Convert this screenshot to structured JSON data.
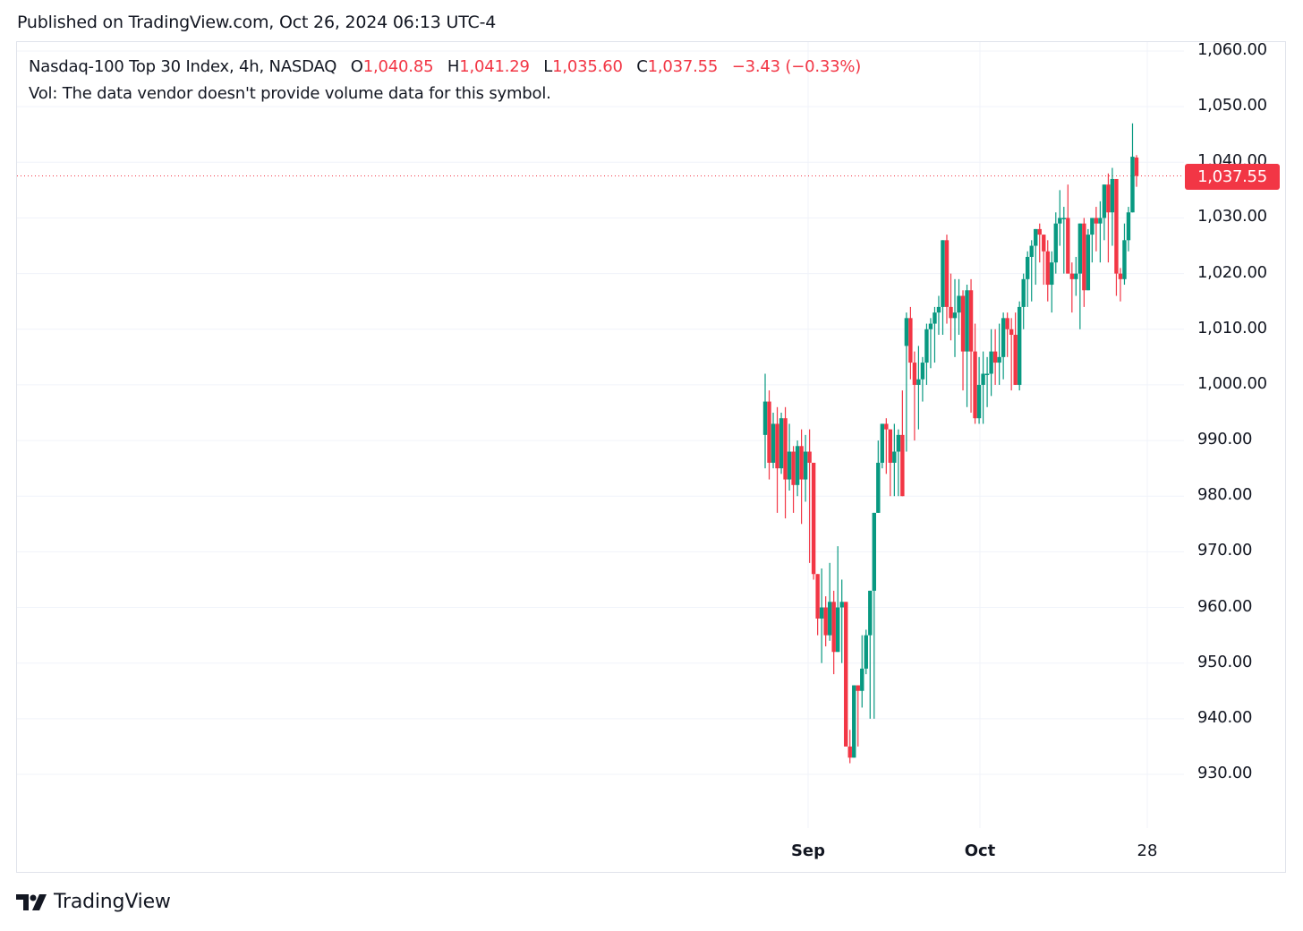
{
  "header": {
    "published": "Published on TradingView.com, Oct 26, 2024 06:13 UTC-4"
  },
  "legend": {
    "symbol": "Nasdaq-100 Top 30 Index, 4h, NASDAQ",
    "open_label": "O",
    "open": "1,040.85",
    "high_label": "H",
    "high": "1,041.29",
    "low_label": "L",
    "low": "1,035.60",
    "close_label": "C",
    "close": "1,037.55",
    "change": "−3.43 (−0.33%)",
    "volume_note": "Vol: The data vendor doesn't provide volume data for this symbol."
  },
  "price_tag": "1,037.55",
  "footer": {
    "brand": "TradingView"
  },
  "colors": {
    "up": "#089981",
    "down": "#f23645",
    "grid": "#f0f3fa",
    "text": "#131722"
  },
  "chart_data": {
    "type": "candlestick",
    "title": "Nasdaq-100 Top 30 Index, 4h, NASDAQ",
    "xlabel": "",
    "ylabel": "",
    "x_ticks": [
      "Sep",
      "Oct",
      "28"
    ],
    "y_ticks": [
      "1,060.00",
      "1,050.00",
      "1,040.00",
      "1,030.00",
      "1,020.00",
      "1,010.00",
      "1,000.00",
      "990.00",
      "980.00",
      "970.00",
      "960.00",
      "950.00",
      "940.00",
      "930.00"
    ],
    "ylim": [
      919,
      1062
    ],
    "grid": true,
    "last_price": 1037.55,
    "candles": [
      [
        991,
        1002,
        985,
        997
      ],
      [
        997,
        999,
        983,
        986
      ],
      [
        986,
        995,
        985,
        993
      ],
      [
        993,
        996,
        977,
        985
      ],
      [
        985,
        995,
        984,
        994
      ],
      [
        994,
        996,
        976,
        983
      ],
      [
        983,
        993,
        981,
        988
      ],
      [
        988,
        989,
        977,
        982
      ],
      [
        982,
        990,
        980,
        989
      ],
      [
        989,
        992,
        975,
        983
      ],
      [
        983,
        991,
        979,
        988
      ],
      [
        988,
        992,
        968,
        986
      ],
      [
        986,
        986,
        965,
        966
      ],
      [
        966,
        966,
        955,
        958
      ],
      [
        958,
        967,
        950,
        960
      ],
      [
        960,
        962,
        953,
        955
      ],
      [
        955,
        968,
        954,
        961
      ],
      [
        961,
        963,
        948,
        952
      ],
      [
        952,
        971,
        952,
        960
      ],
      [
        960,
        965,
        950,
        961
      ],
      [
        961,
        961,
        935,
        935
      ],
      [
        935,
        938,
        932,
        933
      ],
      [
        933,
        946,
        936,
        946
      ],
      [
        946,
        946,
        935,
        945
      ],
      [
        945,
        955,
        942,
        949
      ],
      [
        949,
        956,
        948,
        955
      ],
      [
        955,
        955,
        940,
        963
      ],
      [
        963,
        974,
        940,
        977
      ],
      [
        977,
        990,
        977,
        986
      ],
      [
        986,
        993,
        985,
        993
      ],
      [
        993,
        994,
        984,
        992
      ],
      [
        992,
        992,
        980,
        986
      ],
      [
        986,
        993,
        980,
        988
      ],
      [
        988,
        992,
        980,
        991
      ],
      [
        991,
        999,
        985,
        980
      ],
      [
        1007,
        1013,
        988,
        1012
      ],
      [
        1012,
        1014,
        1001,
        1004
      ],
      [
        1004,
        1006,
        990,
        1000
      ],
      [
        1000,
        1007,
        992,
        1001
      ],
      [
        1001,
        1005,
        997,
        1004
      ],
      [
        1004,
        1011,
        1000,
        1010
      ],
      [
        1010,
        1012,
        1003,
        1011
      ],
      [
        1011,
        1014,
        1004,
        1013
      ],
      [
        1013,
        1016,
        1009,
        1014
      ],
      [
        1014,
        1026,
        1009,
        1026
      ],
      [
        1026,
        1027,
        1011,
        1014
      ],
      [
        1014,
        1020,
        1008,
        1012
      ],
      [
        1012,
        1019,
        1005,
        1013
      ],
      [
        1013,
        1019,
        1009,
        1016
      ],
      [
        1016,
        1017,
        999,
        1006
      ],
      [
        1006,
        1018,
        996,
        1017
      ],
      [
        1017,
        1019,
        995,
        1006
      ],
      [
        1006,
        1011,
        993,
        994
      ],
      [
        994,
        1005,
        993,
        1000
      ],
      [
        1000,
        1006,
        993,
        1002
      ],
      [
        1002,
        1005,
        996,
        1002
      ],
      [
        1002,
        1010,
        998,
        1006
      ],
      [
        1006,
        1010,
        1000,
        1004
      ],
      [
        1004,
        1011,
        1000,
        1005
      ],
      [
        1005,
        1013,
        1001,
        1012
      ],
      [
        1012,
        1013,
        1005,
        1010
      ],
      [
        1010,
        1012,
        999,
        1009
      ],
      [
        1009,
        1013,
        1000,
        1000
      ],
      [
        1000,
        1015,
        999,
        1014
      ],
      [
        1014,
        1020,
        1010,
        1019
      ],
      [
        1019,
        1024,
        1014,
        1023
      ],
      [
        1023,
        1026,
        1015,
        1025
      ],
      [
        1025,
        1028,
        1018,
        1028
      ],
      [
        1028,
        1029,
        1022,
        1027
      ],
      [
        1027,
        1026,
        1018,
        1024
      ],
      [
        1024,
        1026,
        1015,
        1018
      ],
      [
        1018,
        1024,
        1013,
        1022
      ],
      [
        1022,
        1031,
        1020,
        1029
      ],
      [
        1029,
        1035,
        1025,
        1030
      ],
      [
        1030,
        1032,
        1020,
        1030
      ],
      [
        1030,
        1036,
        1022,
        1020
      ],
      [
        1020,
        1022,
        1013,
        1019
      ],
      [
        1019,
        1023,
        1016,
        1020
      ],
      [
        1020,
        1029,
        1010,
        1029
      ],
      [
        1029,
        1030,
        1014,
        1017
      ],
      [
        1017,
        1028,
        1017,
        1027
      ],
      [
        1027,
        1030,
        1022,
        1030
      ],
      [
        1030,
        1032,
        1024,
        1029
      ],
      [
        1029,
        1033,
        1022,
        1030
      ],
      [
        1030,
        1035,
        1026,
        1036
      ],
      [
        1036,
        1038,
        1022,
        1031
      ],
      [
        1031,
        1039,
        1025,
        1037
      ],
      [
        1037,
        1033,
        1016,
        1020
      ],
      [
        1020,
        1021,
        1015,
        1019
      ],
      [
        1019,
        1029,
        1018,
        1026
      ],
      [
        1026,
        1032,
        1024,
        1031
      ],
      [
        1031,
        1047,
        1035,
        1041
      ],
      [
        1040.85,
        1041.29,
        1035.6,
        1037.55
      ]
    ]
  }
}
